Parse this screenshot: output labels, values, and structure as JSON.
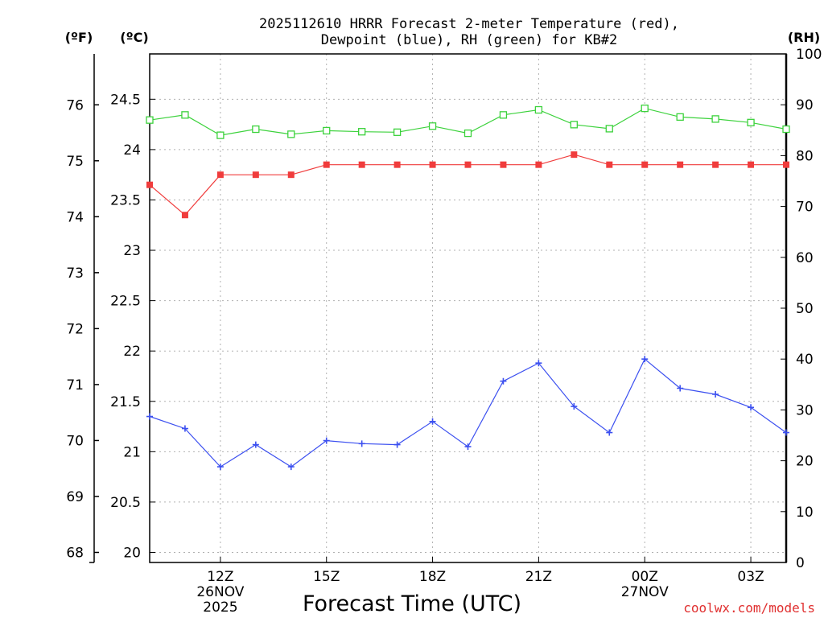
{
  "chart_data": {
    "type": "line",
    "title_line1": "2025112610 HRRR Forecast 2-meter Temperature (red),",
    "title_line2": "Dewpoint (blue), RH (green) for KB#2",
    "axis_units": {
      "fahrenheit": "(ºF)",
      "celsius": "(ºC)",
      "rh": "(RH)"
    },
    "xlabel": "Forecast Time (UTC)",
    "credit": "coolwx.com/models",
    "x_hours": [
      0,
      1,
      2,
      3,
      4,
      5,
      6,
      7,
      8,
      9,
      10,
      11,
      12,
      13,
      14,
      15,
      16,
      17,
      18
    ],
    "x_ticks": [
      {
        "hour": 2,
        "label": "12Z",
        "date": "26NOV",
        "year": "2025"
      },
      {
        "hour": 5,
        "label": "15Z",
        "date": "",
        "year": ""
      },
      {
        "hour": 8,
        "label": "18Z",
        "date": "",
        "year": ""
      },
      {
        "hour": 11,
        "label": "21Z",
        "date": "",
        "year": ""
      },
      {
        "hour": 14,
        "label": "00Z",
        "date": "27NOV",
        "year": ""
      },
      {
        "hour": 17,
        "label": "03Z",
        "date": "",
        "year": ""
      }
    ],
    "celsius_ticks": [
      "20",
      "20.5",
      "21",
      "21.5",
      "22",
      "22.5",
      "23",
      "23.5",
      "24",
      "24.5"
    ],
    "fahrenheit_ticks": [
      "68",
      "69",
      "70",
      "71",
      "72",
      "73",
      "74",
      "75",
      "76"
    ],
    "rh_ticks": [
      "0",
      "10",
      "20",
      "30",
      "40",
      "50",
      "60",
      "70",
      "80",
      "90",
      "100"
    ],
    "ylim_celsius": [
      19.9,
      24.95
    ],
    "series": [
      {
        "name": "Temperature",
        "unit": "C",
        "color": "#f03c3c",
        "marker": "filled-square",
        "values": [
          23.65,
          23.35,
          23.75,
          23.75,
          23.75,
          23.85,
          23.85,
          23.85,
          23.85,
          23.85,
          23.85,
          23.85,
          23.95,
          23.85,
          23.85,
          23.85,
          23.85,
          23.85,
          23.85
        ]
      },
      {
        "name": "Dewpoint",
        "unit": "C",
        "color": "#3c50f0",
        "marker": "plus",
        "values": [
          21.35,
          21.23,
          20.85,
          21.07,
          20.85,
          21.11,
          21.08,
          21.07,
          21.3,
          21.05,
          21.7,
          21.88,
          21.45,
          21.19,
          21.92,
          21.63,
          21.57,
          21.44,
          21.19
        ]
      },
      {
        "name": "RH",
        "unit": "%",
        "color": "#3cd23c",
        "marker": "open-square",
        "values": [
          87,
          88,
          84,
          85.2,
          84.2,
          84.9,
          84.7,
          84.6,
          85.8,
          84.4,
          88,
          89,
          86.1,
          85.3,
          89.3,
          87.6,
          87.2,
          86.5,
          85.2
        ]
      }
    ]
  }
}
